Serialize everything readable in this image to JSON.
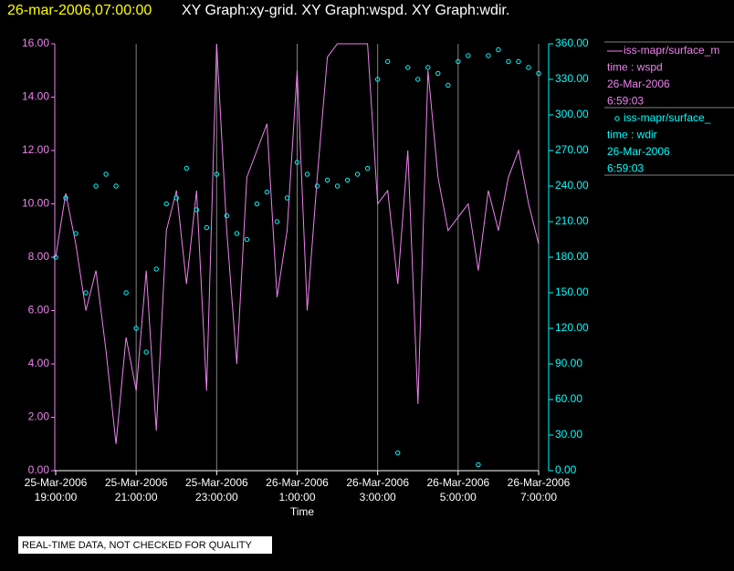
{
  "chart_data": {
    "type": "line-scatter",
    "title": "26-mar-2006,07:00:00",
    "subtitle": "XY Graph:xy-grid.  XY Graph:wspd.  XY Graph:wdir.",
    "xlabel": "Time",
    "annotation": "REAL-TIME DATA, NOT CHECKED FOR QUALITY",
    "grid": true,
    "xlim": [
      "2006-03-25T19:00",
      "2006-03-26T07:00"
    ],
    "xticks": [
      {
        "value": "2006-03-25T19:00",
        "label": [
          "25-Mar-2006",
          "19:00:00"
        ]
      },
      {
        "value": "2006-03-25T21:00",
        "label": [
          "25-Mar-2006",
          "21:00:00"
        ]
      },
      {
        "value": "2006-03-25T23:00",
        "label": [
          "25-Mar-2006",
          "23:00:00"
        ]
      },
      {
        "value": "2006-03-26T01:00",
        "label": [
          "26-Mar-2006",
          "1:00:00"
        ]
      },
      {
        "value": "2006-03-26T03:00",
        "label": [
          "26-Mar-2006",
          "3:00:00"
        ]
      },
      {
        "value": "2006-03-26T05:00",
        "label": [
          "26-Mar-2006",
          "5:00:00"
        ]
      },
      {
        "value": "2006-03-26T07:00",
        "label": [
          "26-Mar-2006",
          "7:00:00"
        ]
      }
    ],
    "ylim": [
      0,
      16
    ],
    "yticks": [
      {
        "value": 0,
        "label": "0.00"
      },
      {
        "value": 2,
        "label": "2.00"
      },
      {
        "value": 4,
        "label": "4.00"
      },
      {
        "value": 6,
        "label": "6.00"
      },
      {
        "value": 8,
        "label": "8.00"
      },
      {
        "value": 10,
        "label": "10.00"
      },
      {
        "value": 12,
        "label": "12.00"
      },
      {
        "value": 14,
        "label": "14.00"
      },
      {
        "value": 16,
        "label": "16.00"
      }
    ],
    "y2lim": [
      0,
      360
    ],
    "y2ticks": [
      {
        "value": 0,
        "label": "0.00"
      },
      {
        "value": 30,
        "label": "30.00"
      },
      {
        "value": 60,
        "label": "60.00"
      },
      {
        "value": 90,
        "label": "90.00"
      },
      {
        "value": 120,
        "label": "120.00"
      },
      {
        "value": 150,
        "label": "150.00"
      },
      {
        "value": 180,
        "label": "180.00"
      },
      {
        "value": 210,
        "label": "210.00"
      },
      {
        "value": 240,
        "label": "240.00"
      },
      {
        "value": 270,
        "label": "270.00"
      },
      {
        "value": 300,
        "label": "300.00"
      },
      {
        "value": 330,
        "label": "330.00"
      },
      {
        "value": 360,
        "label": "360.00"
      }
    ],
    "x": [
      "2006-03-25T19:00",
      "2006-03-25T19:15",
      "2006-03-25T19:30",
      "2006-03-25T19:45",
      "2006-03-25T20:00",
      "2006-03-25T20:15",
      "2006-03-25T20:30",
      "2006-03-25T20:45",
      "2006-03-25T21:00",
      "2006-03-25T21:15",
      "2006-03-25T21:30",
      "2006-03-25T21:45",
      "2006-03-25T22:00",
      "2006-03-25T22:15",
      "2006-03-25T22:30",
      "2006-03-25T22:45",
      "2006-03-25T23:00",
      "2006-03-25T23:15",
      "2006-03-25T23:30",
      "2006-03-25T23:45",
      "2006-03-26T00:00",
      "2006-03-26T00:15",
      "2006-03-26T00:30",
      "2006-03-26T00:45",
      "2006-03-26T01:00",
      "2006-03-26T01:15",
      "2006-03-26T01:30",
      "2006-03-26T01:45",
      "2006-03-26T02:00",
      "2006-03-26T02:15",
      "2006-03-26T02:30",
      "2006-03-26T02:45",
      "2006-03-26T03:00",
      "2006-03-26T03:15",
      "2006-03-26T03:30",
      "2006-03-26T03:45",
      "2006-03-26T04:00",
      "2006-03-26T04:15",
      "2006-03-26T04:30",
      "2006-03-26T04:45",
      "2006-03-26T05:00",
      "2006-03-26T05:15",
      "2006-03-26T05:30",
      "2006-03-26T05:45",
      "2006-03-26T06:00",
      "2006-03-26T06:15",
      "2006-03-26T06:30",
      "2006-03-26T06:45",
      "2006-03-26T07:00"
    ],
    "series": [
      {
        "name": "iss-mapr/surface_m",
        "legend_info": [
          "time : wspd",
          "26-Mar-2006",
          "6:59:03"
        ],
        "color": "#ee82ee",
        "mark": "line",
        "values": [
          8.0,
          10.4,
          8.5,
          6.0,
          7.5,
          4.5,
          1.0,
          5.0,
          3.0,
          7.5,
          1.5,
          9.0,
          10.5,
          7.0,
          10.5,
          3.0,
          16.0,
          9.0,
          4.0,
          11.0,
          12.0,
          13.0,
          6.5,
          9.0,
          15.0,
          6.0,
          11.0,
          15.5,
          16.0,
          16.0,
          16.0,
          16.0,
          10.0,
          10.5,
          7.0,
          12.0,
          2.5,
          15.0,
          11.0,
          9.0,
          9.5,
          10.0,
          7.5,
          10.5,
          9.0,
          11.0,
          12.0,
          10.0,
          8.5
        ]
      },
      {
        "name": "iss-mapr/surface_",
        "legend_info": [
          "time : wdir",
          "26-Mar-2006",
          "6:59:03"
        ],
        "color": "#00ffff",
        "mark": "circle",
        "axis": "y2",
        "values": [
          180,
          230,
          200,
          150,
          240,
          250,
          240,
          150,
          120,
          100,
          170,
          225,
          230,
          255,
          220,
          205,
          250,
          215,
          200,
          195,
          225,
          235,
          210,
          230,
          260,
          250,
          240,
          245,
          240,
          245,
          250,
          255,
          330,
          345,
          15,
          340,
          330,
          340,
          335,
          325,
          345,
          350,
          5,
          350,
          355,
          345,
          345,
          340,
          335
        ]
      }
    ]
  }
}
